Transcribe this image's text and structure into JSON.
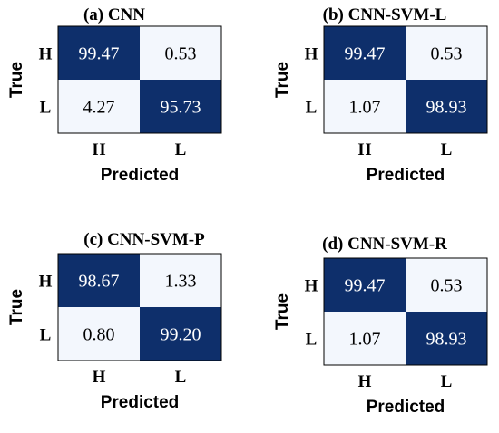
{
  "palette": {
    "dark": "#0e2f6b",
    "light": "#f3f7fd",
    "text_on_dark": "#ffffff",
    "text_on_light": "#000000",
    "border": "#000000"
  },
  "chart_data": [
    {
      "type": "heatmap",
      "title": "(a) CNN",
      "xlabel": "Predicted",
      "ylabel": "True",
      "x_categories": [
        "H",
        "L"
      ],
      "y_categories": [
        "H",
        "L"
      ],
      "values": [
        [
          "99.47",
          "0.53"
        ],
        [
          "4.27",
          "95.73"
        ]
      ]
    },
    {
      "type": "heatmap",
      "title": "(b) CNN-SVM-L",
      "xlabel": "Predicted",
      "ylabel": "True",
      "x_categories": [
        "H",
        "L"
      ],
      "y_categories": [
        "H",
        "L"
      ],
      "values": [
        [
          "99.47",
          "0.53"
        ],
        [
          "1.07",
          "98.93"
        ]
      ]
    },
    {
      "type": "heatmap",
      "title": "(c) CNN-SVM-P",
      "xlabel": "Predicted",
      "ylabel": "True",
      "x_categories": [
        "H",
        "L"
      ],
      "y_categories": [
        "H",
        "L"
      ],
      "values": [
        [
          "98.67",
          "1.33"
        ],
        [
          "0.80",
          "99.20"
        ]
      ]
    },
    {
      "type": "heatmap",
      "title": "(d) CNN-SVM-R",
      "xlabel": "Predicted",
      "ylabel": "True",
      "x_categories": [
        "H",
        "L"
      ],
      "y_categories": [
        "H",
        "L"
      ],
      "values": [
        [
          "99.47",
          "0.53"
        ],
        [
          "1.07",
          "98.93"
        ]
      ]
    }
  ]
}
